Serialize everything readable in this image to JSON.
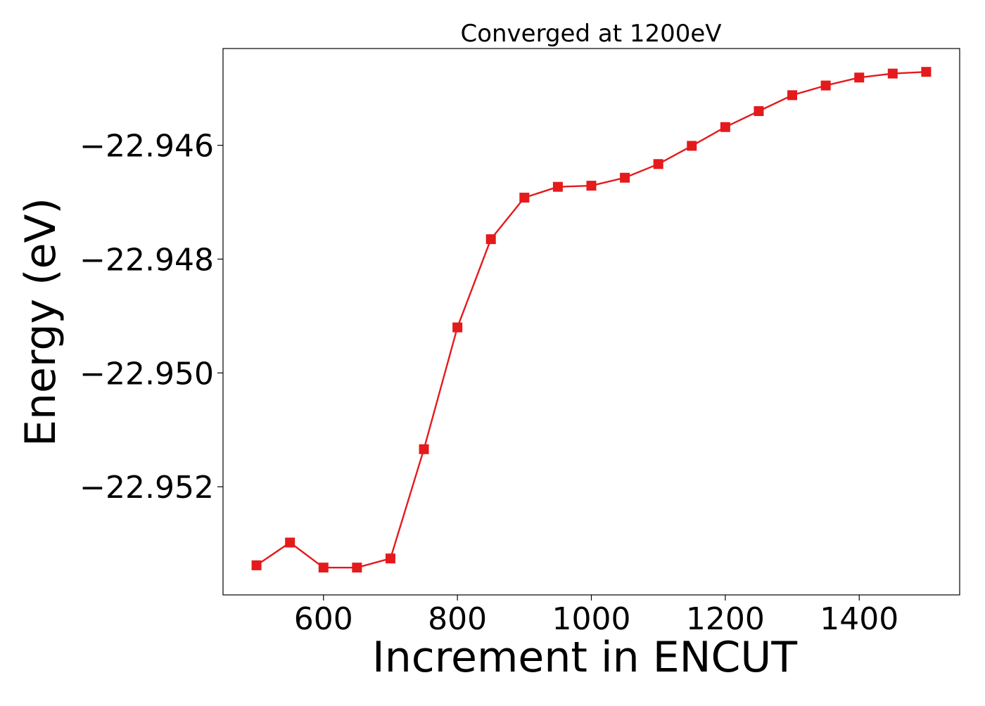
{
  "chart_data": {
    "type": "line",
    "title": "Converged at 1200eV",
    "xlabel": "Increment in ENCUT",
    "ylabel": "Energy (eV)",
    "xlim": [
      450,
      1550
    ],
    "ylim": [
      -22.9539,
      -22.9443
    ],
    "x_ticks": [
      600,
      800,
      1000,
      1200,
      1400
    ],
    "y_ticks": [
      -22.946,
      -22.948,
      -22.95,
      -22.952
    ],
    "x_tick_labels": [
      "600",
      "800",
      "1000",
      "1200",
      "1400"
    ],
    "y_tick_labels": [
      "−22.946",
      "−22.948",
      "−22.950",
      "−22.952"
    ],
    "grid": false,
    "series": [
      {
        "color": "#e41a1c",
        "marker": "square",
        "x": [
          500,
          550,
          600,
          650,
          700,
          750,
          800,
          850,
          900,
          950,
          1000,
          1050,
          1100,
          1150,
          1200,
          1250,
          1300,
          1350,
          1400,
          1450,
          1500
        ],
        "y": [
          -22.95338,
          -22.95298,
          -22.95342,
          -22.95342,
          -22.95326,
          -22.95134,
          -22.9492,
          -22.94765,
          -22.94692,
          -22.94673,
          -22.94671,
          -22.94657,
          -22.94633,
          -22.94601,
          -22.94568,
          -22.9454,
          -22.94512,
          -22.94495,
          -22.94481,
          -22.94474,
          -22.94471
        ]
      }
    ]
  }
}
